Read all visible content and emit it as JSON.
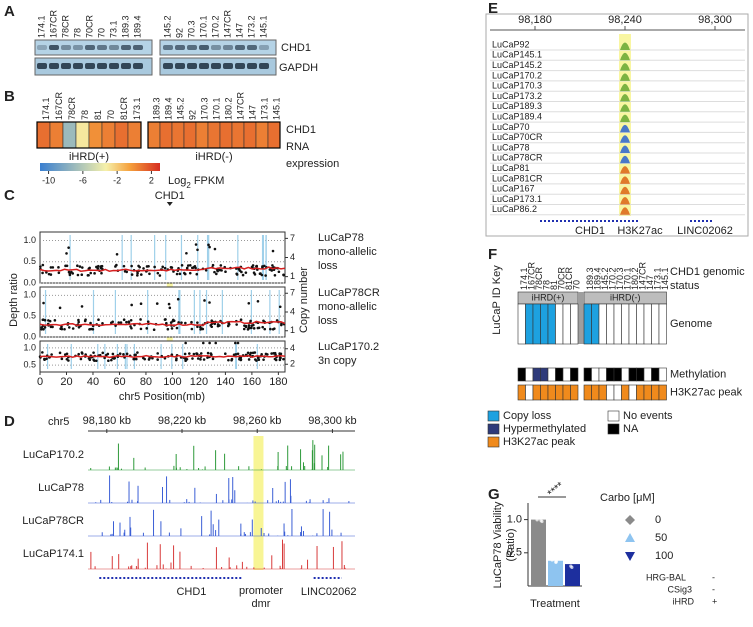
{
  "panels": {
    "a": {
      "label": "A",
      "left_samples": [
        "174.1",
        "167CR",
        "78CR",
        "78",
        "70CR",
        "70",
        "73.1",
        "189.3",
        "189.4"
      ],
      "right_samples": [
        "145.2",
        "92",
        "70.3",
        "170.1",
        "170.2",
        "147CR",
        "147",
        "173.2",
        "145.1"
      ],
      "rows": [
        "CHD1",
        "GAPDH"
      ]
    },
    "b": {
      "label": "B",
      "left_samples": [
        "174.1",
        "167CR",
        "78CR",
        "78",
        "81",
        "70",
        "81CR",
        "173.1"
      ],
      "right_samples": [
        "189.3",
        "189.4",
        "145.2",
        "92",
        "170.3",
        "170.1",
        "180.2",
        "147CR",
        "147",
        "173.1",
        "145.1"
      ],
      "left_values": [
        1,
        0.5,
        -7,
        -3,
        0,
        0.5,
        1,
        0.5
      ],
      "right_values": [
        0.5,
        1,
        0.8,
        1,
        0.5,
        0.8,
        1,
        0.8,
        1,
        0.5,
        1
      ],
      "left_group": "iHRD(+)",
      "right_group": "iHRD(-)",
      "side_label": [
        "CHD1",
        "RNA",
        "expression"
      ],
      "scale_lim": [
        -11,
        3
      ],
      "scale_ticks": [
        -10,
        -6,
        -2,
        2
      ],
      "scale_label": {
        "base": "Log",
        "sub": "2",
        "unit": "FPKM"
      }
    },
    "c": {
      "label": "C",
      "marker": {
        "label": "CHD1",
        "x": 98
      },
      "xlim": [
        0,
        185
      ],
      "xticks": [
        0,
        20,
        40,
        60,
        80,
        100,
        120,
        140,
        160,
        180
      ],
      "xlabel": "chr5 Position(mb)",
      "ylabel": "Depth ratio",
      "y2label": "Copy number",
      "tracks": [
        {
          "name": [
            "LuCaP78",
            "mono-allelic",
            "loss"
          ],
          "ylim": [
            0,
            1.2
          ],
          "yticks": [
            {
              "value": 0,
              "label": "0.0"
            },
            {
              "value": 0.5,
              "label": "0.5"
            },
            {
              "value": 1,
              "label": "1.0"
            }
          ],
          "y2lim": [
            0,
            8
          ],
          "y2ticks": [
            1,
            4,
            7
          ]
        },
        {
          "name": [
            "LuCaP78CR",
            "mono-allelic",
            "loss"
          ],
          "ylim": [
            0,
            1.2
          ],
          "yticks": [
            {
              "value": 0,
              "label": "0.0"
            },
            {
              "value": 0.5,
              "label": "0.5"
            },
            {
              "value": 1,
              "label": "1.0"
            }
          ],
          "y2lim": [
            0,
            8
          ],
          "y2ticks": [
            1,
            4,
            7
          ]
        },
        {
          "name": [
            "LuCaP170.2",
            "3n copy"
          ],
          "ylim": [
            0.3,
            1.2
          ],
          "yticks": [
            {
              "value": 0.5,
              "label": "0.5"
            },
            {
              "value": 1,
              "label": "1.0"
            }
          ],
          "y2lim": [
            1,
            5
          ],
          "y2ticks": [
            2,
            4
          ]
        }
      ]
    },
    "d": {
      "label": "D",
      "chrom": "chr5",
      "xlim": [
        98170,
        98312
      ],
      "xticks": [
        {
          "value": 98180,
          "label": "98,180 kb"
        },
        {
          "value": 98220,
          "label": "98,220 kb"
        },
        {
          "value": 98260,
          "label": "98,260 kb"
        },
        {
          "value": 98300,
          "label": "98,300 kb"
        }
      ],
      "tracks": [
        {
          "name": "LuCaP170.2",
          "color": "#2e9a3a"
        },
        {
          "name": "LuCaP78",
          "color": "#3b5fd6"
        },
        {
          "name": "LuCaP78CR",
          "color": "#3b5fd6"
        },
        {
          "name": "LuCaP174.1",
          "color": "#d83a3a"
        }
      ],
      "genes": [
        "CHD1",
        "LINC02062"
      ],
      "region": [
        "promoter",
        "dmr"
      ]
    },
    "e": {
      "label": "E",
      "xlim": [
        98150,
        98320
      ],
      "xticks": [
        {
          "value": 98180,
          "label": "98,180"
        },
        {
          "value": 98240,
          "label": "98,240"
        },
        {
          "value": 98300,
          "label": "98,300"
        }
      ],
      "samples": [
        "LuCaP92",
        "LuCaP145.1",
        "LuCaP145.2",
        "LuCaP170.2",
        "LuCaP170.3",
        "LuCaP173.2",
        "LuCaP189.3",
        "LuCaP189.4",
        "LuCaP70",
        "LuCaP70CR",
        "LuCaP78",
        "LuCaP78CR",
        "LuCaP81",
        "LuCaP81CR",
        "LuCaP167",
        "LuCaP173.1",
        "LuCaP86.2"
      ],
      "genes": [
        "CHD1",
        "H3K27ac",
        "LINC02062"
      ]
    },
    "f": {
      "label": "F",
      "title": "LuCaP ID Key",
      "left_samples": [
        "174.1",
        "167CR",
        "78CR",
        "78",
        "81",
        "70CR",
        "81CR",
        "70"
      ],
      "right_samples": [
        "189.3",
        "189.4",
        "145.2",
        "170.2",
        "170.3",
        "170.1",
        "180.2",
        "147CR",
        "147",
        "173.1",
        "145.1"
      ],
      "left_group": "iHRD(+)",
      "right_group": "iHRD(-)",
      "status_label": [
        "CHD1 genomic",
        "status"
      ],
      "rows": [
        {
          "name": "Genome",
          "left": [
            3,
            0,
            0,
            0,
            0,
            3,
            3,
            3
          ],
          "right": [
            0,
            0,
            3,
            3,
            3,
            3,
            3,
            3,
            3,
            3,
            3
          ]
        },
        {
          "name": "Methylation",
          "left": [
            4,
            3,
            1,
            1,
            3,
            4,
            3,
            4
          ],
          "right": [
            4,
            3,
            3,
            4,
            4,
            3,
            4,
            4,
            3,
            4,
            3
          ]
        },
        {
          "name": "H3K27ac peak",
          "left": [
            2,
            3,
            2,
            2,
            2,
            2,
            2,
            2
          ],
          "right": [
            2,
            2,
            2,
            3,
            3,
            2,
            3,
            2,
            2,
            2,
            2
          ]
        }
      ],
      "legend": [
        {
          "name": "Copy loss",
          "color": "#1da1e0"
        },
        {
          "name": "Hypermethylated",
          "color": "#2e3a7a"
        },
        {
          "name": "H3K27ac peak",
          "color": "#f08a1c"
        },
        {
          "name": "No events",
          "color": "#ffffff"
        },
        {
          "name": "NA",
          "color": "#000000"
        }
      ]
    },
    "g": {
      "label": "G",
      "type": "bar",
      "ylabel": [
        "LuCaP78 Viability",
        "(Ratio)"
      ],
      "xlabel": "Treatment",
      "ylim": [
        0,
        1.25
      ],
      "yticks": [
        {
          "value": 0.5,
          "label": "0.5"
        },
        {
          "value": 1,
          "label": "1.0"
        }
      ],
      "legend_title": "Carbo [μM]",
      "series": [
        {
          "name": "0",
          "color": "#8a8a8a",
          "value": 1.0
        },
        {
          "name": "50",
          "color": "#8ec4f0",
          "value": 0.38
        },
        {
          "name": "100",
          "color": "#1d2f9e",
          "value": 0.33
        }
      ],
      "significance": "****",
      "conditions": [
        {
          "name": "HRG-BAL",
          "value": "-"
        },
        {
          "name": "CSig3",
          "value": "-"
        },
        {
          "name": "iHRD",
          "value": "+"
        }
      ]
    }
  }
}
